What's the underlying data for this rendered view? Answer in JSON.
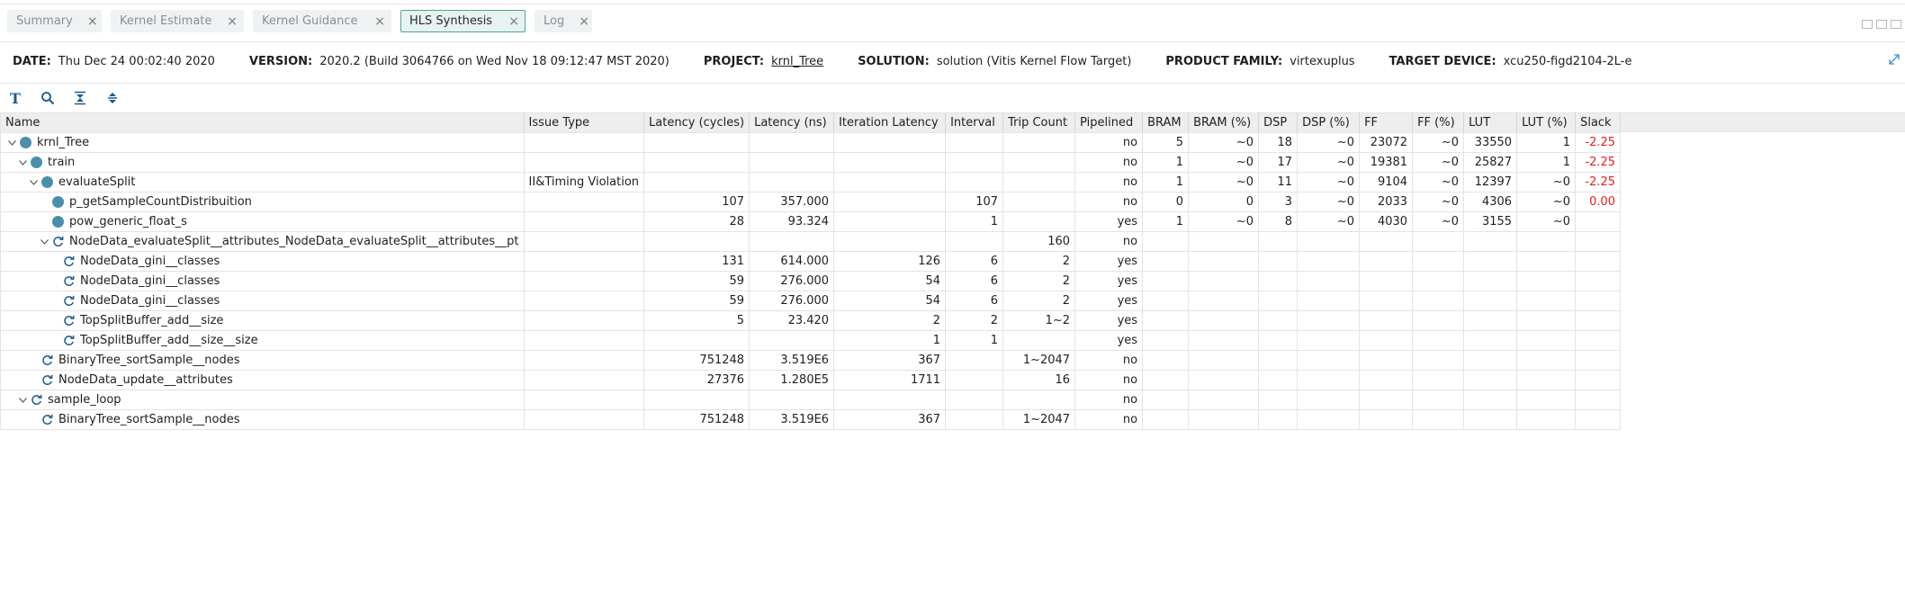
{
  "tabs": [
    {
      "label": "Summary",
      "active": false
    },
    {
      "label": "Kernel Estimate",
      "active": false
    },
    {
      "label": "Kernel Guidance",
      "active": false
    },
    {
      "label": "HLS Synthesis",
      "active": true
    },
    {
      "label": "Log",
      "active": false
    }
  ],
  "tab_close_glyph": "×",
  "info": {
    "date_label": "DATE:",
    "date": "Thu Dec 24 00:02:40 2020",
    "version_label": "VERSION:",
    "version": "2020.2 (Build 3064766 on Wed Nov 18 09:12:47 MST 2020)",
    "project_label": "PROJECT:",
    "project": "krnl_Tree",
    "solution_label": "SOLUTION:",
    "solution": "solution (Vitis Kernel Flow Target)",
    "family_label": "PRODUCT FAMILY:",
    "family": "virtexuplus",
    "device_label": "TARGET DEVICE:",
    "device": "xcu250-figd2104-2L-e"
  },
  "toolbar": {
    "text_tool": "T",
    "icons": [
      "text-format-icon",
      "search-icon",
      "collapse-all-icon",
      "expand-all-icon"
    ]
  },
  "colors": {
    "accent": "#53a393",
    "dot": "#4a90ad",
    "negative": "#e5201d",
    "icon_blue": "#1b5a8f"
  },
  "columns": [
    "Name",
    "Issue Type",
    "Latency (cycles)",
    "Latency (ns)",
    "Iteration Latency",
    "Interval",
    "Trip Count",
    "Pipelined",
    "BRAM",
    "BRAM (%)",
    "DSP",
    "DSP (%)",
    "FF",
    "FF (%)",
    "LUT",
    "LUT (%)",
    "Slack"
  ],
  "rows": [
    {
      "name": "krnl_Tree",
      "level": 0,
      "expand": "open",
      "icon": "dot",
      "issue": "",
      "lat_cycles": "",
      "lat_ns": "",
      "iter_lat": "",
      "interval": "",
      "trip": "",
      "pipelined": "no",
      "bram": "5",
      "bram_pct": "~0",
      "dsp": "18",
      "dsp_pct": "~0",
      "ff": "23072",
      "ff_pct": "~0",
      "lut": "33550",
      "lut_pct": "1",
      "slack": "-2.25"
    },
    {
      "name": "train",
      "level": 1,
      "expand": "open",
      "icon": "dot",
      "issue": "",
      "lat_cycles": "",
      "lat_ns": "",
      "iter_lat": "",
      "interval": "",
      "trip": "",
      "pipelined": "no",
      "bram": "1",
      "bram_pct": "~0",
      "dsp": "17",
      "dsp_pct": "~0",
      "ff": "19381",
      "ff_pct": "~0",
      "lut": "25827",
      "lut_pct": "1",
      "slack": "-2.25"
    },
    {
      "name": "evaluateSplit",
      "level": 2,
      "expand": "open",
      "icon": "dot",
      "issue": "II&Timing Violation",
      "lat_cycles": "",
      "lat_ns": "",
      "iter_lat": "",
      "interval": "",
      "trip": "",
      "pipelined": "no",
      "bram": "1",
      "bram_pct": "~0",
      "dsp": "11",
      "dsp_pct": "~0",
      "ff": "9104",
      "ff_pct": "~0",
      "lut": "12397",
      "lut_pct": "~0",
      "slack": "-2.25"
    },
    {
      "name": "p_getSampleCountDistribuition",
      "level": 3,
      "expand": "none",
      "icon": "dot",
      "issue": "",
      "lat_cycles": "107",
      "lat_ns": "357.000",
      "iter_lat": "",
      "interval": "107",
      "trip": "",
      "pipelined": "no",
      "bram": "0",
      "bram_pct": "0",
      "dsp": "3",
      "dsp_pct": "~0",
      "ff": "2033",
      "ff_pct": "~0",
      "lut": "4306",
      "lut_pct": "~0",
      "slack": "0.00"
    },
    {
      "name": "pow_generic_float_s",
      "level": 3,
      "expand": "none",
      "icon": "dot",
      "issue": "",
      "lat_cycles": "28",
      "lat_ns": "93.324",
      "iter_lat": "",
      "interval": "1",
      "trip": "",
      "pipelined": "yes",
      "bram": "1",
      "bram_pct": "~0",
      "dsp": "8",
      "dsp_pct": "~0",
      "ff": "4030",
      "ff_pct": "~0",
      "lut": "3155",
      "lut_pct": "~0",
      "slack": ""
    },
    {
      "name": "NodeData_evaluateSplit__attributes_NodeData_evaluateSplit__attributes__pt",
      "level": 3,
      "expand": "open",
      "icon": "loop",
      "issue": "",
      "lat_cycles": "",
      "lat_ns": "",
      "iter_lat": "",
      "interval": "",
      "trip": "160",
      "pipelined": "no",
      "bram": "",
      "bram_pct": "",
      "dsp": "",
      "dsp_pct": "",
      "ff": "",
      "ff_pct": "",
      "lut": "",
      "lut_pct": "",
      "slack": ""
    },
    {
      "name": "NodeData_gini__classes",
      "level": 4,
      "expand": "none",
      "icon": "loop",
      "issue": "",
      "lat_cycles": "131",
      "lat_ns": "614.000",
      "iter_lat": "126",
      "interval": "6",
      "trip": "2",
      "pipelined": "yes",
      "bram": "",
      "bram_pct": "",
      "dsp": "",
      "dsp_pct": "",
      "ff": "",
      "ff_pct": "",
      "lut": "",
      "lut_pct": "",
      "slack": ""
    },
    {
      "name": "NodeData_gini__classes",
      "level": 4,
      "expand": "none",
      "icon": "loop",
      "issue": "",
      "lat_cycles": "59",
      "lat_ns": "276.000",
      "iter_lat": "54",
      "interval": "6",
      "trip": "2",
      "pipelined": "yes",
      "bram": "",
      "bram_pct": "",
      "dsp": "",
      "dsp_pct": "",
      "ff": "",
      "ff_pct": "",
      "lut": "",
      "lut_pct": "",
      "slack": ""
    },
    {
      "name": "NodeData_gini__classes",
      "level": 4,
      "expand": "none",
      "icon": "loop",
      "issue": "",
      "lat_cycles": "59",
      "lat_ns": "276.000",
      "iter_lat": "54",
      "interval": "6",
      "trip": "2",
      "pipelined": "yes",
      "bram": "",
      "bram_pct": "",
      "dsp": "",
      "dsp_pct": "",
      "ff": "",
      "ff_pct": "",
      "lut": "",
      "lut_pct": "",
      "slack": ""
    },
    {
      "name": "TopSplitBuffer_add__size",
      "level": 4,
      "expand": "none",
      "icon": "loop",
      "issue": "",
      "lat_cycles": "5",
      "lat_ns": "23.420",
      "iter_lat": "2",
      "interval": "2",
      "trip": "1~2",
      "pipelined": "yes",
      "bram": "",
      "bram_pct": "",
      "dsp": "",
      "dsp_pct": "",
      "ff": "",
      "ff_pct": "",
      "lut": "",
      "lut_pct": "",
      "slack": ""
    },
    {
      "name": "TopSplitBuffer_add__size__size",
      "level": 4,
      "expand": "none",
      "icon": "loop",
      "issue": "",
      "lat_cycles": "",
      "lat_ns": "",
      "iter_lat": "1",
      "interval": "1",
      "trip": "",
      "pipelined": "yes",
      "bram": "",
      "bram_pct": "",
      "dsp": "",
      "dsp_pct": "",
      "ff": "",
      "ff_pct": "",
      "lut": "",
      "lut_pct": "",
      "slack": ""
    },
    {
      "name": "BinaryTree_sortSample__nodes",
      "level": 2,
      "expand": "none",
      "icon": "loop",
      "issue": "",
      "lat_cycles": "751248",
      "lat_ns": "3.519E6",
      "iter_lat": "367",
      "interval": "",
      "trip": "1~2047",
      "pipelined": "no",
      "bram": "",
      "bram_pct": "",
      "dsp": "",
      "dsp_pct": "",
      "ff": "",
      "ff_pct": "",
      "lut": "",
      "lut_pct": "",
      "slack": ""
    },
    {
      "name": "NodeData_update__attributes",
      "level": 2,
      "expand": "none",
      "icon": "loop",
      "issue": "",
      "lat_cycles": "27376",
      "lat_ns": "1.280E5",
      "iter_lat": "1711",
      "interval": "",
      "trip": "16",
      "pipelined": "no",
      "bram": "",
      "bram_pct": "",
      "dsp": "",
      "dsp_pct": "",
      "ff": "",
      "ff_pct": "",
      "lut": "",
      "lut_pct": "",
      "slack": ""
    },
    {
      "name": "sample_loop",
      "level": 1,
      "expand": "open",
      "icon": "loop",
      "issue": "",
      "lat_cycles": "",
      "lat_ns": "",
      "iter_lat": "",
      "interval": "",
      "trip": "",
      "pipelined": "no",
      "bram": "",
      "bram_pct": "",
      "dsp": "",
      "dsp_pct": "",
      "ff": "",
      "ff_pct": "",
      "lut": "",
      "lut_pct": "",
      "slack": ""
    },
    {
      "name": "BinaryTree_sortSample__nodes",
      "level": 2,
      "expand": "none",
      "icon": "loop",
      "issue": "",
      "lat_cycles": "751248",
      "lat_ns": "3.519E6",
      "iter_lat": "367",
      "interval": "",
      "trip": "1~2047",
      "pipelined": "no",
      "bram": "",
      "bram_pct": "",
      "dsp": "",
      "dsp_pct": "",
      "ff": "",
      "ff_pct": "",
      "lut": "",
      "lut_pct": "",
      "slack": ""
    }
  ]
}
